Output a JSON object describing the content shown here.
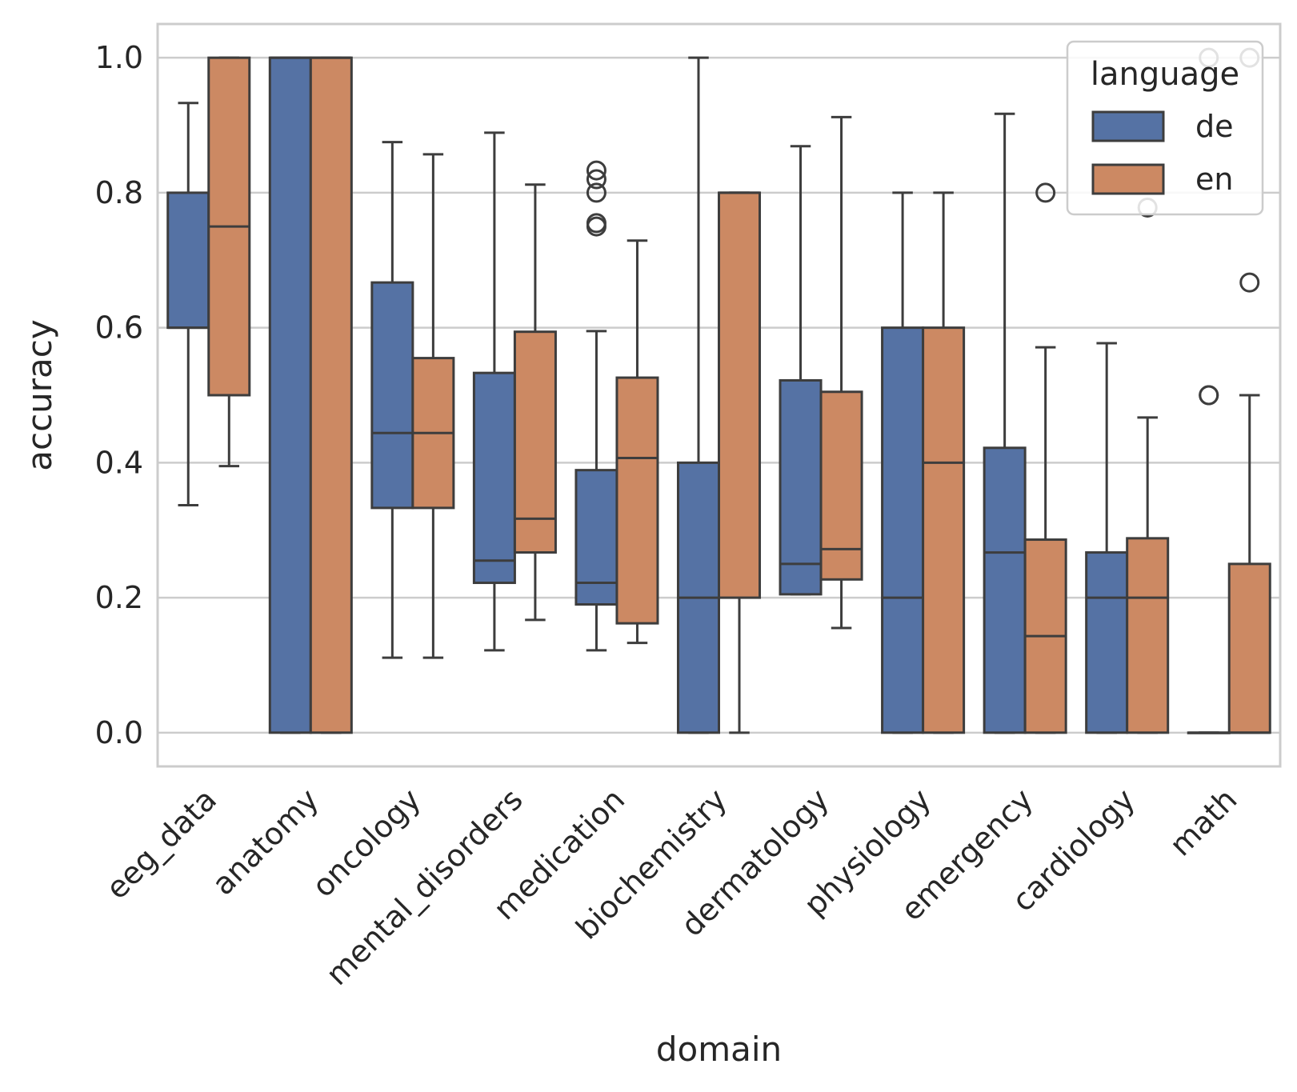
{
  "chart_data": {
    "type": "boxplot",
    "xlabel": "domain",
    "ylabel": "accuracy",
    "ylim": [
      -0.05,
      1.05
    ],
    "yticks": [
      "0.0",
      "0.2",
      "0.4",
      "0.6",
      "0.8",
      "1.0"
    ],
    "grid": "horizontal",
    "legend": {
      "title": "language",
      "placement": "top-right"
    },
    "categories": [
      "eeg_data",
      "anatomy",
      "oncology",
      "mental_disorders",
      "medication",
      "biochemistry",
      "dermatology",
      "physiology",
      "emergency",
      "cardiology",
      "math"
    ],
    "series": [
      {
        "name": "de",
        "color": "#5572a4",
        "boxes": [
          {
            "whislo": 0.337,
            "q1": 0.6,
            "med": 0.6,
            "q3": 0.8,
            "whishi": 0.933,
            "fliers": []
          },
          {
            "whislo": 0.0,
            "q1": 0.0,
            "med": 1.0,
            "q3": 1.0,
            "whishi": 1.0,
            "fliers": []
          },
          {
            "whislo": 0.111,
            "q1": 0.333,
            "med": 0.444,
            "q3": 0.667,
            "whishi": 0.875,
            "fliers": []
          },
          {
            "whislo": 0.122,
            "q1": 0.222,
            "med": 0.255,
            "q3": 0.533,
            "whishi": 0.889,
            "fliers": []
          },
          {
            "whislo": 0.122,
            "q1": 0.19,
            "med": 0.222,
            "q3": 0.389,
            "whishi": 0.595,
            "fliers": [
              0.75,
              0.755,
              0.8,
              0.82,
              0.833
            ]
          },
          {
            "whislo": 0.0,
            "q1": 0.0,
            "med": 0.2,
            "q3": 0.4,
            "whishi": 1.0,
            "fliers": []
          },
          {
            "whislo": 0.205,
            "q1": 0.205,
            "med": 0.25,
            "q3": 0.522,
            "whishi": 0.869,
            "fliers": []
          },
          {
            "whislo": 0.0,
            "q1": 0.0,
            "med": 0.2,
            "q3": 0.6,
            "whishi": 0.8,
            "fliers": []
          },
          {
            "whislo": 0.0,
            "q1": 0.0,
            "med": 0.267,
            "q3": 0.422,
            "whishi": 0.917,
            "fliers": []
          },
          {
            "whislo": 0.0,
            "q1": 0.0,
            "med": 0.2,
            "q3": 0.267,
            "whishi": 0.577,
            "fliers": []
          },
          {
            "whislo": 0.0,
            "q1": 0.0,
            "med": 0.0,
            "q3": 0.0,
            "whishi": 0.0,
            "fliers": [
              0.5,
              0.5,
              1.0
            ]
          }
        ]
      },
      {
        "name": "en",
        "color": "#cc8963",
        "boxes": [
          {
            "whislo": 0.395,
            "q1": 0.5,
            "med": 0.75,
            "q3": 1.0,
            "whishi": 1.0,
            "fliers": []
          },
          {
            "whislo": 0.0,
            "q1": 0.0,
            "med": 1.0,
            "q3": 1.0,
            "whishi": 1.0,
            "fliers": []
          },
          {
            "whislo": 0.111,
            "q1": 0.333,
            "med": 0.444,
            "q3": 0.555,
            "whishi": 0.857,
            "fliers": []
          },
          {
            "whislo": 0.167,
            "q1": 0.267,
            "med": 0.317,
            "q3": 0.594,
            "whishi": 0.812,
            "fliers": []
          },
          {
            "whislo": 0.133,
            "q1": 0.162,
            "med": 0.407,
            "q3": 0.526,
            "whishi": 0.729,
            "fliers": []
          },
          {
            "whislo": 0.0,
            "q1": 0.2,
            "med": 0.8,
            "q3": 0.8,
            "whishi": 0.8,
            "fliers": []
          },
          {
            "whislo": 0.155,
            "q1": 0.227,
            "med": 0.272,
            "q3": 0.505,
            "whishi": 0.912,
            "fliers": []
          },
          {
            "whislo": 0.0,
            "q1": 0.0,
            "med": 0.4,
            "q3": 0.6,
            "whishi": 0.8,
            "fliers": []
          },
          {
            "whislo": 0.0,
            "q1": 0.0,
            "med": 0.143,
            "q3": 0.286,
            "whishi": 0.571,
            "fliers": [
              0.8
            ]
          },
          {
            "whislo": 0.0,
            "q1": 0.0,
            "med": 0.2,
            "q3": 0.288,
            "whishi": 0.467,
            "fliers": [
              0.778
            ]
          },
          {
            "whislo": 0.0,
            "q1": 0.0,
            "med": 0.0,
            "q3": 0.25,
            "whishi": 0.5,
            "fliers": [
              0.667,
              1.0
            ]
          }
        ]
      }
    ]
  }
}
